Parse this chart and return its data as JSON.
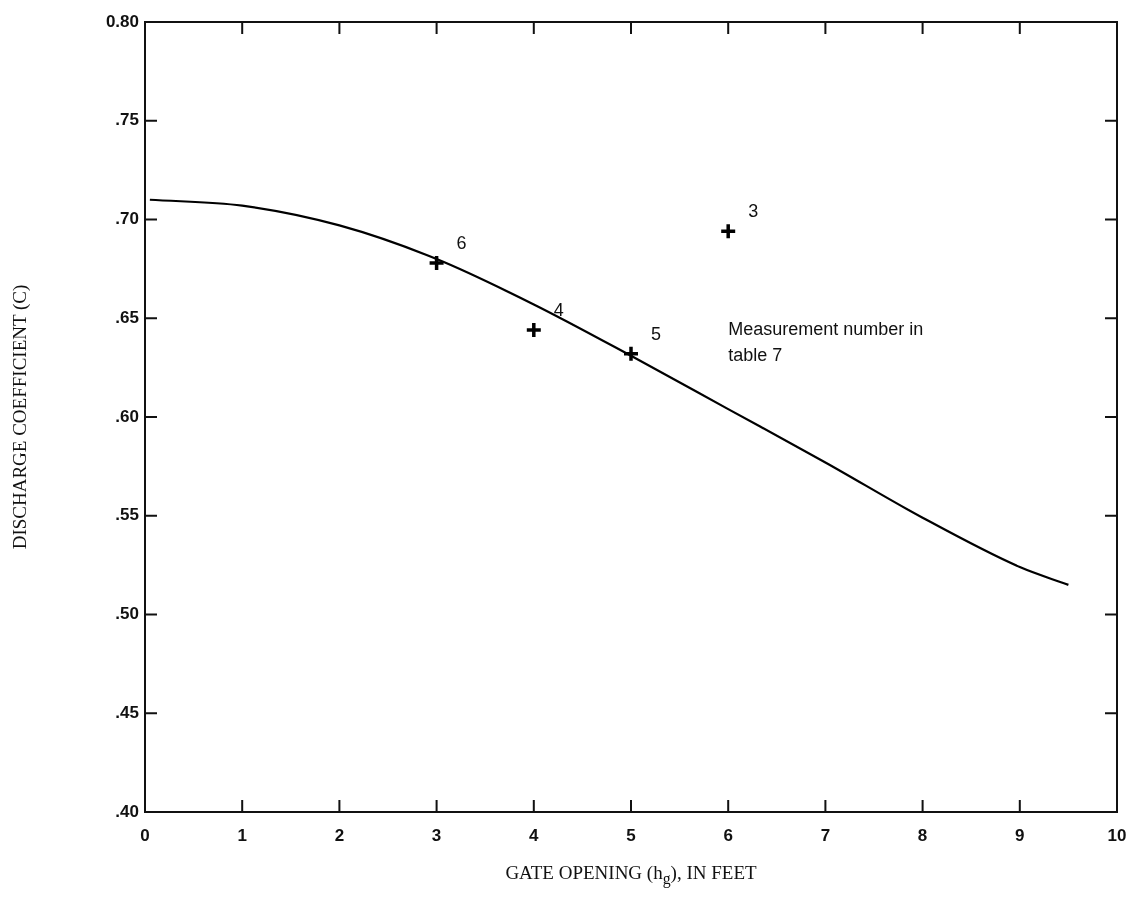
{
  "chart_data": {
    "type": "line",
    "xlabel": "GATE OPENING (h$_{g}$), IN FEET",
    "ylabel": "DISCHARGE COEFFICIENT (C)",
    "xlim": [
      0,
      10
    ],
    "xticks": [
      0,
      1,
      2,
      3,
      4,
      5,
      6,
      7,
      8,
      9,
      10
    ],
    "ylim": [
      0.4,
      0.8
    ],
    "yticks": [
      {
        "value": 0.4,
        "label": ".40"
      },
      {
        "value": 0.45,
        "label": ".45"
      },
      {
        "value": 0.5,
        "label": ".50"
      },
      {
        "value": 0.55,
        "label": ".55"
      },
      {
        "value": 0.6,
        "label": ".60"
      },
      {
        "value": 0.65,
        "label": ".65"
      },
      {
        "value": 0.7,
        "label": ".70"
      },
      {
        "value": 0.75,
        "label": ".75"
      },
      {
        "value": 0.8,
        "label": "0.80"
      }
    ],
    "grid": false,
    "legend": false,
    "series": [
      {
        "type": "line",
        "color": "#000000",
        "marker": "none",
        "line_style": "solid",
        "x": [
          0.05,
          1,
          2,
          3,
          4,
          5,
          6,
          7,
          8,
          9,
          9.5
        ],
        "values": [
          0.71,
          0.707,
          0.697,
          0.68,
          0.657,
          0.631,
          0.604,
          0.577,
          0.549,
          0.524,
          0.515
        ]
      },
      {
        "type": "scatter",
        "color": "#000000",
        "marker": "cross",
        "x": [
          3,
          4,
          5,
          6
        ],
        "values": [
          0.678,
          0.644,
          0.632,
          0.694
        ]
      }
    ],
    "annotations": [
      {
        "text": "6",
        "x": 3,
        "y": 0.678
      },
      {
        "text": "4",
        "x": 4,
        "y": 0.644
      },
      {
        "text": "5",
        "x": 5,
        "y": 0.632
      },
      {
        "text": "3",
        "x": 6,
        "y": 0.694
      },
      "Measurement number in table 7"
    ]
  }
}
